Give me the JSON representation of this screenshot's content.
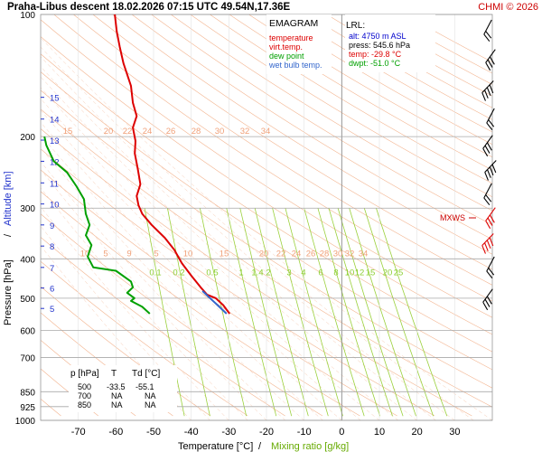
{
  "header": {
    "title": "Praha-Libus   descent   18.02.2026 07:15 UTC  49.54N,17.36E",
    "copyright": "CHMI © 2026"
  },
  "legend": {
    "title": "EMAGRAM",
    "items": [
      {
        "label": "temperature",
        "color": "#dd0000"
      },
      {
        "label": "virt.temp.",
        "color": "#dd0000"
      },
      {
        "label": "dew point",
        "color": "#00a000"
      },
      {
        "label": "wet bulb temp.",
        "color": "#3366cc"
      }
    ]
  },
  "lrl": {
    "title": "LRL:",
    "alt": "alt: 4750 m ASL",
    "press": "press: 545.6 hPa",
    "temp": "temp: -29.8 °C",
    "dwpt": "dwpt: -51.0 °C"
  },
  "mxws_label": "MXWS",
  "table": {
    "headers": [
      "p [hPa]",
      "T",
      "Td [°C]"
    ],
    "rows": [
      [
        "500",
        "-33.5",
        "-55.1"
      ],
      [
        "700",
        "NA",
        "NA"
      ],
      [
        "850",
        "NA",
        "NA"
      ]
    ]
  },
  "axes": {
    "xlabel": "Temperature [°C]",
    "xlabel_sep": "/",
    "xlabel2": "Mixing ratio [g/kg]",
    "ylabel": "Pressure [hPa]",
    "ylabel_sep": "/",
    "ylabel2": "Altitude [km]"
  },
  "chart_data": {
    "type": "line",
    "title": "Praha-Libus   descent   18.02.2026 07:15 UTC  49.54N,17.36E",
    "x_axis": {
      "label": "Temperature [°C]",
      "range": [
        -80,
        40
      ],
      "ticks": [
        -70,
        -60,
        -50,
        -40,
        -30,
        -20,
        -10,
        0,
        10,
        20,
        30
      ]
    },
    "y_axis": {
      "label": "Pressure [hPa]",
      "scale": "log",
      "range": [
        1000,
        100
      ],
      "ticks": [
        100,
        200,
        300,
        400,
        500,
        600,
        700,
        850,
        925,
        1000
      ]
    },
    "altitude_ticks_km": [
      1,
      5,
      6,
      7,
      8,
      9,
      10,
      11,
      12,
      13,
      14,
      15
    ],
    "dry_adiabat_labels": [
      "15",
      "20",
      "22",
      "24",
      "26",
      "28",
      "30",
      "32",
      "34"
    ],
    "moist_adiabat_labels": [
      "10",
      "5",
      "9",
      "5",
      "10",
      "15",
      "20",
      "22",
      "24",
      "26",
      "28",
      "30",
      "32",
      "34"
    ],
    "mixing_ratio_labels": [
      "0.1",
      "0.2",
      "0.5",
      "1",
      "1.4",
      "2",
      "3",
      "4",
      "6",
      "8",
      "10",
      "12",
      "15",
      "20",
      "25"
    ],
    "series": [
      {
        "name": "temperature",
        "color": "#dd0000",
        "points": [
          [
            -60.3,
            100
          ],
          [
            -59.8,
            110
          ],
          [
            -59.0,
            120
          ],
          [
            -58.0,
            132
          ],
          [
            -56.0,
            150
          ],
          [
            -55.5,
            165
          ],
          [
            -54.5,
            178
          ],
          [
            -55.5,
            190
          ],
          [
            -54.8,
            205
          ],
          [
            -55.0,
            220
          ],
          [
            -54.2,
            240
          ],
          [
            -53.5,
            262
          ],
          [
            -54.5,
            280
          ],
          [
            -54.0,
            295
          ],
          [
            -53.0,
            310
          ],
          [
            -50.5,
            330
          ],
          [
            -47.0,
            355
          ],
          [
            -44.5,
            380
          ],
          [
            -42.5,
            410
          ],
          [
            -40.0,
            440
          ],
          [
            -37.5,
            470
          ],
          [
            -35.8,
            490
          ],
          [
            -33.5,
            500
          ],
          [
            -31.5,
            520
          ],
          [
            -29.8,
            546
          ]
        ]
      },
      {
        "name": "wet bulb temp.",
        "color": "#3366cc",
        "points": [
          [
            -37.0,
            480
          ],
          [
            -35.0,
            500
          ],
          [
            -33.0,
            520
          ],
          [
            -30.6,
            546
          ]
        ]
      },
      {
        "name": "dew point",
        "color": "#00a000",
        "points": [
          [
            -79.0,
            200
          ],
          [
            -78.5,
            210
          ],
          [
            -76.5,
            230
          ],
          [
            -73.0,
            245
          ],
          [
            -70.5,
            265
          ],
          [
            -68.5,
            285
          ],
          [
            -68.0,
            310
          ],
          [
            -67.0,
            330
          ],
          [
            -68.0,
            350
          ],
          [
            -66.5,
            370
          ],
          [
            -67.5,
            395
          ],
          [
            -66.0,
            420
          ],
          [
            -60.0,
            428
          ],
          [
            -56.0,
            455
          ],
          [
            -55.5,
            470
          ],
          [
            -57.0,
            485
          ],
          [
            -55.1,
            500
          ],
          [
            -56.0,
            508
          ],
          [
            -53.0,
            525
          ],
          [
            -51.0,
            546
          ]
        ]
      }
    ],
    "grid": true
  }
}
